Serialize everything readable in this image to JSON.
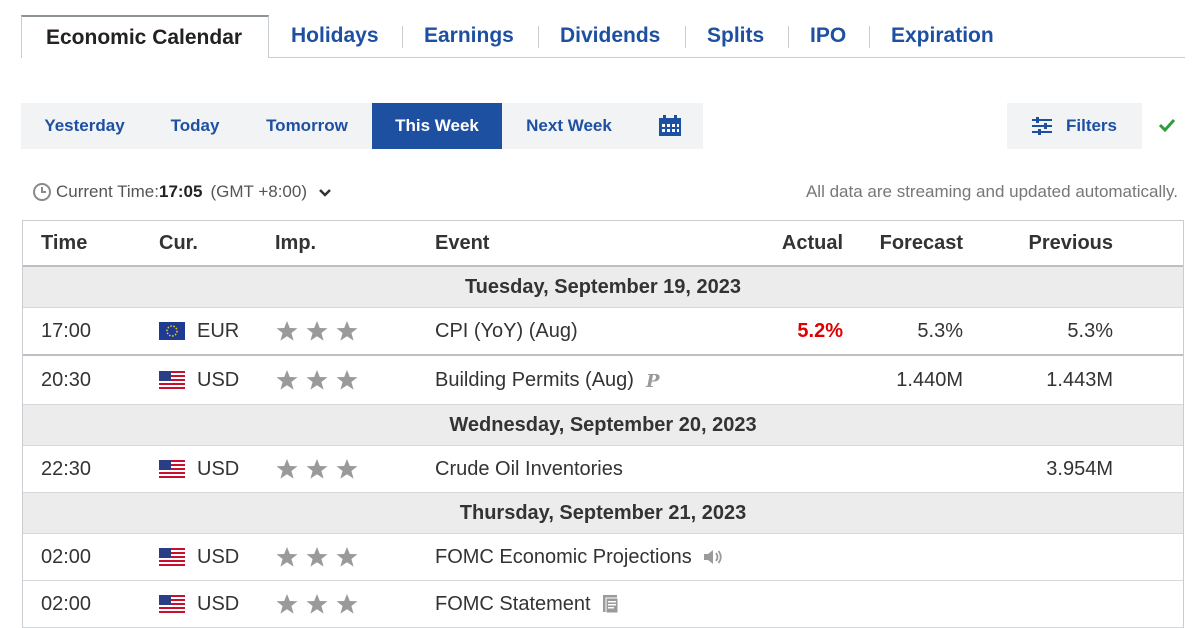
{
  "tabs": [
    {
      "label": "Economic Calendar",
      "active": true
    },
    {
      "label": "Holidays"
    },
    {
      "label": "Earnings"
    },
    {
      "label": "Dividends"
    },
    {
      "label": "Splits"
    },
    {
      "label": "IPO"
    },
    {
      "label": "Expiration"
    }
  ],
  "period": {
    "yesterday": "Yesterday",
    "today": "Today",
    "tomorrow": "Tomorrow",
    "this_week": "This Week",
    "next_week": "Next Week",
    "calendar_icon": "calendar-icon"
  },
  "filters": {
    "label": "Filters",
    "icon": "filter-sliders-icon"
  },
  "status": {
    "current_time_label": "Current Time:",
    "current_time": "17:05",
    "timezone": "(GMT +8:00)",
    "streaming_note": "All data are streaming and updated automatically."
  },
  "table": {
    "headers": {
      "time": "Time",
      "cur": "Cur.",
      "imp": "Imp.",
      "event": "Event",
      "actual": "Actual",
      "forecast": "Forecast",
      "previous": "Previous"
    },
    "days": [
      {
        "date": "Tuesday, September 19, 2023",
        "events": [
          {
            "time": "17:00",
            "flag": "eu-flag-icon",
            "cur": "EUR",
            "importance": 3,
            "event": "CPI (YoY) (Aug)",
            "event_icon": "",
            "actual": "5.2%",
            "forecast": "5.3%",
            "previous": "5.3%"
          },
          {
            "time": "20:30",
            "flag": "us-flag-icon",
            "cur": "USD",
            "importance": 3,
            "event": "Building Permits (Aug)",
            "event_icon": "preliminary-p-icon",
            "actual": "",
            "forecast": "1.440M",
            "previous": "1.443M"
          }
        ]
      },
      {
        "date": "Wednesday, September 20, 2023",
        "events": [
          {
            "time": "22:30",
            "flag": "us-flag-icon",
            "cur": "USD",
            "importance": 3,
            "event": "Crude Oil Inventories",
            "event_icon": "",
            "actual": "",
            "forecast": "",
            "previous": "3.954M"
          }
        ]
      },
      {
        "date": "Thursday, September 21, 2023",
        "events": [
          {
            "time": "02:00",
            "flag": "us-flag-icon",
            "cur": "USD",
            "importance": 3,
            "event": "FOMC Economic Projections",
            "event_icon": "speaker-icon",
            "actual": "",
            "forecast": "",
            "previous": ""
          },
          {
            "time": "02:00",
            "flag": "us-flag-icon",
            "cur": "USD",
            "importance": 3,
            "event": "FOMC Statement",
            "event_icon": "document-icon",
            "actual": "",
            "forecast": "",
            "previous": ""
          }
        ]
      }
    ]
  },
  "colors": {
    "link_blue": "#1e50a2",
    "actual_red": "#e00000",
    "star_gray": "#9a9a9a",
    "check_green": "#2e9e3a"
  }
}
